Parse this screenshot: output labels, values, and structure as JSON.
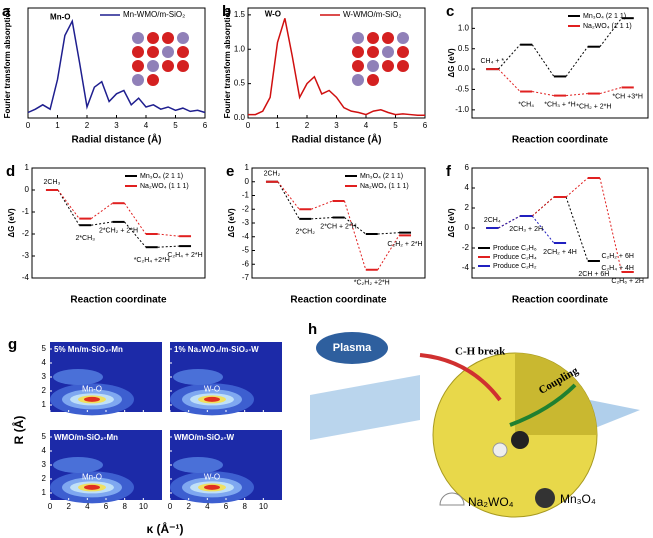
{
  "chart_data": [
    {
      "type": "line",
      "panel": "a",
      "xlabel": "Radial distance (Å)",
      "ylabel": "Fourier transform absorption",
      "annotation": "Mn-O",
      "x": [
        0,
        0.25,
        0.5,
        0.75,
        1,
        1.25,
        1.5,
        1.75,
        2,
        2.25,
        2.5,
        2.75,
        3,
        3.25,
        3.5,
        3.75,
        4,
        4.25,
        4.5,
        4.75,
        5,
        5.25,
        5.5,
        5.75,
        6
      ],
      "series": [
        {
          "name": "Mn-WMO/m-SiO₂",
          "color": "#1f1f8f",
          "values": [
            0.05,
            0.08,
            0.12,
            0.08,
            0.35,
            0.75,
            0.88,
            0.5,
            0.1,
            0.28,
            0.33,
            0.15,
            0.22,
            0.25,
            0.12,
            0.18,
            0.1,
            0.12,
            0.08,
            0.1,
            0.07,
            0.09,
            0.06,
            0.07,
            0.05
          ]
        }
      ],
      "xlim": [
        0,
        6
      ],
      "xticks": [
        0,
        1,
        2,
        3,
        4,
        5,
        6
      ],
      "ylim": [
        0,
        1.0
      ]
    },
    {
      "type": "line",
      "panel": "b",
      "xlabel": "Radial distance (Å)",
      "ylabel": "Fourier transform absorption",
      "annotation": "W-O",
      "x": [
        0,
        0.25,
        0.5,
        0.75,
        1,
        1.25,
        1.5,
        1.75,
        2,
        2.25,
        2.5,
        2.75,
        3,
        3.25,
        3.5,
        3.75,
        4,
        4.25,
        4.5,
        4.75,
        5,
        5.25,
        5.5,
        5.75,
        6
      ],
      "series": [
        {
          "name": "W-WMO/m-SiO₂",
          "color": "#d01010",
          "values": [
            0.05,
            0.05,
            0.1,
            0.3,
            1.1,
            1.45,
            0.9,
            0.3,
            0.5,
            0.6,
            0.35,
            0.4,
            0.3,
            0.15,
            0.1,
            0.08,
            0.05,
            0.1,
            0.12,
            0.08,
            0.05,
            0.06,
            0.05,
            0.04,
            0.04
          ]
        }
      ],
      "xlim": [
        0,
        6
      ],
      "xticks": [
        0,
        1,
        2,
        3,
        4,
        5,
        6
      ],
      "ylim": [
        0,
        1.6
      ],
      "yticks": [
        {
          "value": 0,
          "label": "0.0"
        },
        0.5,
        {
          "value": 1,
          "label": "1.0"
        },
        1.5
      ]
    },
    {
      "type": "energy",
      "panel": "c",
      "xlabel": "Reaction coordinate",
      "ylabel": "ΔG (eV)",
      "annotations": [
        "CH₄ + *",
        "*CH₄",
        "*CH₃ + *H",
        "*CH₂ + 2*H",
        "*CH +3*H"
      ],
      "series": [
        {
          "name": "Mn₃O₄ (2 1 1)",
          "color": "#000000",
          "values": [
            0,
            0.6,
            -0.18,
            0.55,
            1.25
          ]
        },
        {
          "name": "Na₂WO₄ (1 1 1)",
          "color": "#e02020",
          "values": [
            0,
            -0.55,
            -0.65,
            -0.6,
            -0.45
          ]
        }
      ],
      "ylim": [
        -1.2,
        1.5
      ],
      "yticks": [
        {
          "value": -1,
          "label": "-1.0"
        },
        -0.5,
        {
          "value": 0,
          "label": "0.0"
        },
        0.5,
        {
          "value": 1,
          "label": "1.0"
        }
      ]
    },
    {
      "type": "energy",
      "panel": "d",
      "xlabel": "Reaction coordinate",
      "ylabel": "ΔG (eV)",
      "annotations": [
        "2CH₃",
        "2*CH₃",
        "2*CH₂ + 2*H",
        "*C₂H₄ +2*H",
        "C₂H₄ + 2*H"
      ],
      "series": [
        {
          "name": "Mn₃O₄ (2 1 1)",
          "color": "#000000",
          "values": [
            0,
            -1.6,
            -1.45,
            -2.6,
            -2.55
          ]
        },
        {
          "name": "Na₂WO₄ (1 1 1)",
          "color": "#e02020",
          "values": [
            0,
            -1.3,
            -0.6,
            -2.0,
            -2.1
          ]
        }
      ],
      "ylim": [
        -4,
        1
      ],
      "yticks": [
        1,
        0,
        -1,
        -2,
        -3,
        -4
      ]
    },
    {
      "type": "energy",
      "panel": "e",
      "xlabel": "Reaction coordinate",
      "ylabel": "ΔG (eV)",
      "annotations": [
        "2CH₂",
        "2*CH₂",
        "2*CH + 2*H",
        "*C₂H₂ +2*H",
        "C₂H₂ + 2*H"
      ],
      "series": [
        {
          "name": "Mn₃O₄ (2 1 1)",
          "color": "#000000",
          "values": [
            0,
            -2.7,
            -2.6,
            -3.8,
            -3.7
          ]
        },
        {
          "name": "Na₂WO₄ (1 1 1)",
          "color": "#e02020",
          "values": [
            0,
            -2.0,
            -1.4,
            -6.4,
            -3.9
          ]
        }
      ],
      "ylim": [
        -7,
        1
      ],
      "yticks": [
        1,
        0,
        -1,
        -2,
        -3,
        -4,
        -5,
        -6,
        -7
      ]
    },
    {
      "type": "energy",
      "panel": "f",
      "xlabel": "Reaction coordinate",
      "ylabel": "ΔG (eV)",
      "annotations": [
        "2CH₄",
        "2CH₃ + 2H",
        "2CH₂ + 4H",
        "2CH + 6H",
        "C₂H₆ + 2H",
        "C₂H₄ + 4H",
        "C₂H₂ + 6H"
      ],
      "series": [
        {
          "name": "Produce C₂H₆",
          "color": "#000000",
          "values": [
            0,
            1.2,
            3.1,
            -3.3,
            null
          ]
        },
        {
          "name": "Produce C₂H₄",
          "color": "#e02020",
          "values": [
            0,
            1.2,
            3.1,
            5.0,
            -4.4
          ]
        },
        {
          "name": "Produce C₂H₂",
          "color": "#2020c0",
          "values": [
            0,
            1.2,
            -1.5,
            null,
            null
          ]
        }
      ],
      "ylim": [
        -5,
        6
      ],
      "yticks": [
        6,
        4,
        2,
        0,
        -2,
        -4
      ]
    },
    {
      "type": "contour",
      "panel": "g",
      "xlabel": "κ (Å⁻¹)",
      "ylabel": "R (Å)",
      "subplots": [
        {
          "title": "5% Mn/m-SiO₂-Mn",
          "label": "Mn-O"
        },
        {
          "title": "1% Na₂WO₄/m-SiO₂-W",
          "label": "W-O"
        },
        {
          "title": "WMO/m-SiO₂-Mn",
          "label": "Mn-O"
        },
        {
          "title": "WMO/m-SiO₂-W",
          "label": "W-O"
        }
      ],
      "xlim": [
        0,
        12
      ],
      "xticks": [
        0,
        2,
        4,
        6,
        8,
        10
      ],
      "ylim": [
        0.5,
        5.5
      ],
      "yticks": [
        1,
        2,
        3,
        4,
        5
      ]
    }
  ],
  "diagram": {
    "panel": "h",
    "labels": [
      "Plasma",
      "C-H break",
      "Coupling"
    ],
    "legend": [
      "Na₂WO₄",
      "Mn₃O₄"
    ]
  }
}
